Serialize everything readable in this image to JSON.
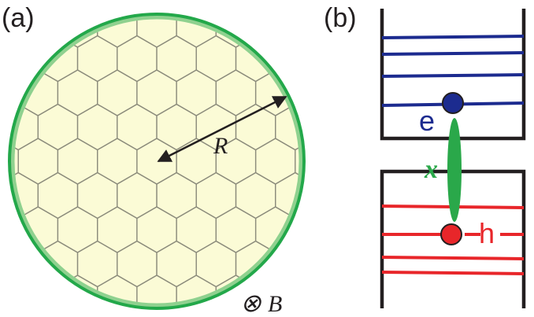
{
  "panel_a": {
    "label": "(a)",
    "radius_label": "R",
    "field_symbol": "⊗",
    "field_label": "B"
  },
  "panel_b": {
    "label": "(b)",
    "electron_label": "e",
    "hole_label": "h",
    "exciton_label": "x"
  },
  "colors": {
    "disk_fill": "#fbfbd6",
    "disk_inner_ring": "#8fd18f",
    "disk_outer_ring": "#23a84a",
    "lattice": "#8c8c7c",
    "arrow": "#231f20",
    "conduction_levels": "#1c2b8f",
    "valence_levels": "#e8262a",
    "exciton": "#2aa84a",
    "walls": "#231f20"
  }
}
